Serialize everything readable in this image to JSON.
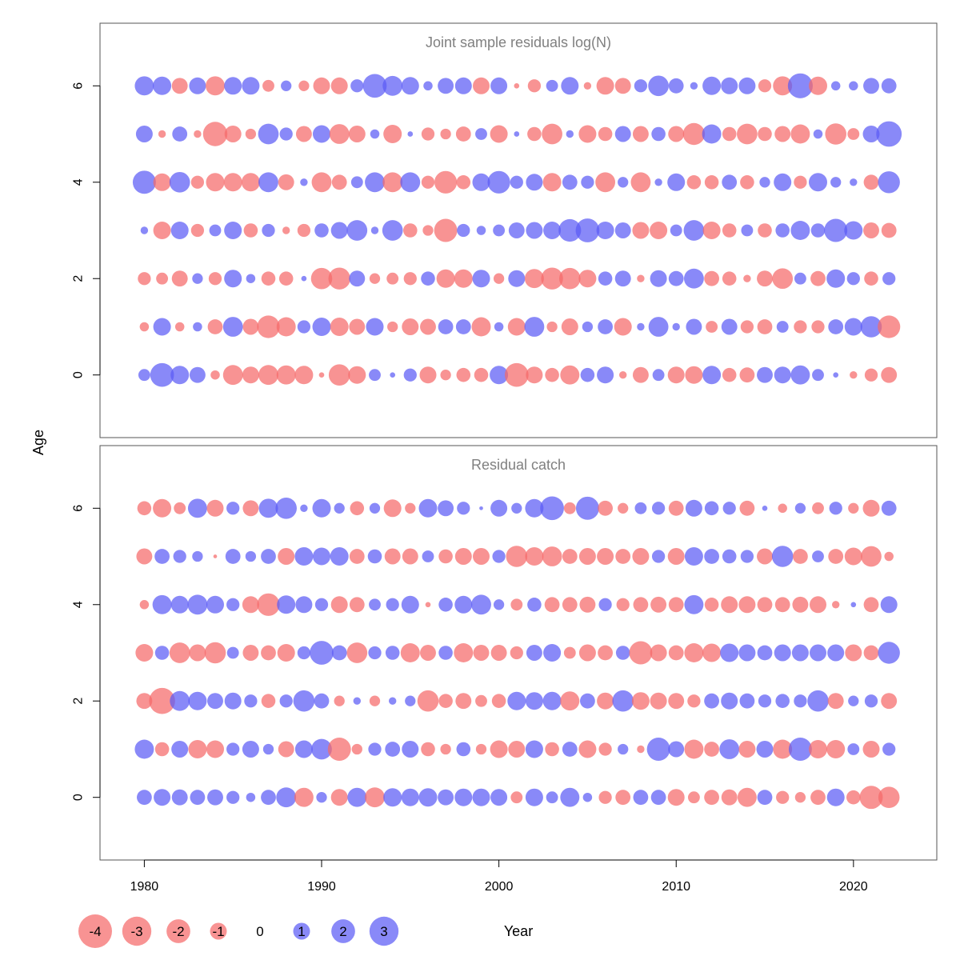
{
  "chart_data": {
    "type": "scatter",
    "subtype": "bubble",
    "xlabel": "Year",
    "ylabel": "Age",
    "xlim": [
      1977.5,
      2024.7
    ],
    "ylim": [
      -1.3,
      7.3
    ],
    "x_ticks": [
      1980,
      1990,
      2000,
      2010,
      2020
    ],
    "y_ticks": [
      0,
      2,
      4,
      6
    ],
    "colors": {
      "positive": "#5b5bf5",
      "negative": "#f56a6a",
      "title": "#808080",
      "frame": "#555555"
    },
    "legend": {
      "values": [
        -4,
        -3,
        -2,
        -1,
        0,
        1,
        2,
        3
      ],
      "labels": [
        "-4",
        "-3",
        "-2",
        "-1",
        "0",
        "1",
        "2",
        "3"
      ],
      "placement": "bottom-left"
    },
    "panels": [
      {
        "title": "Joint sample residuals log(N)",
        "years": [
          1980,
          1981,
          1982,
          1983,
          1984,
          1985,
          1986,
          1987,
          1988,
          1989,
          1990,
          1991,
          1992,
          1993,
          1994,
          1995,
          1996,
          1997,
          1998,
          1999,
          2000,
          2001,
          2002,
          2003,
          2004,
          2005,
          2006,
          2007,
          2008,
          2009,
          2010,
          2011,
          2012,
          2013,
          2014,
          2015,
          2016,
          2017,
          2018,
          2019,
          2020,
          2021,
          2022
        ],
        "rows": {
          "6": [
            1.3,
            1.2,
            -0.9,
            1.0,
            -1.3,
            1.1,
            1.1,
            -0.5,
            0.4,
            -0.4,
            -1.0,
            -1.0,
            0.6,
            2.0,
            1.4,
            1.1,
            0.3,
            0.9,
            1.0,
            -1.0,
            1.0,
            -0.1,
            -0.6,
            0.5,
            1.1,
            -0.2,
            -1.1,
            -0.9,
            0.6,
            1.5,
            0.8,
            0.2,
            1.2,
            1.0,
            1.0,
            -0.6,
            -1.3,
            2.2,
            -1.2,
            0.3,
            0.3,
            0.9,
            0.8
          ],
          "5": [
            1.0,
            -0.2,
            0.8,
            -0.2,
            -2.1,
            -1.0,
            -0.4,
            1.5,
            0.6,
            -0.9,
            1.1,
            -1.4,
            -1.0,
            0.3,
            -1.2,
            0.1,
            -0.6,
            -0.4,
            -0.8,
            0.5,
            -1.1,
            0.1,
            -0.7,
            -1.5,
            0.2,
            -1.1,
            -0.7,
            0.9,
            -0.9,
            0.7,
            -0.9,
            -1.7,
            1.3,
            -0.7,
            -1.5,
            -0.7,
            -0.9,
            -1.3,
            0.3,
            -1.6,
            -0.5,
            1.0,
            2.3
          ],
          "4": [
            1.9,
            -1.1,
            1.5,
            -0.6,
            -1.2,
            -1.2,
            -1.2,
            1.4,
            -0.9,
            0.2,
            -1.4,
            -0.8,
            0.5,
            1.4,
            -1.4,
            1.4,
            -0.6,
            -1.8,
            -0.7,
            1.1,
            1.8,
            0.6,
            1.0,
            -1.2,
            0.8,
            0.6,
            -1.4,
            0.4,
            -1.4,
            0.2,
            1.1,
            -0.7,
            -0.7,
            0.8,
            -0.7,
            0.4,
            1.1,
            -0.6,
            1.2,
            0.4,
            0.2,
            -0.8,
            1.7
          ],
          "3": [
            0.2,
            -1.1,
            1.1,
            -0.6,
            0.5,
            1.1,
            -0.7,
            0.6,
            -0.2,
            -0.6,
            0.7,
            1.0,
            1.5,
            0.2,
            1.5,
            -0.7,
            -0.4,
            -1.9,
            0.6,
            0.3,
            0.5,
            0.9,
            1.0,
            1.1,
            1.8,
            2.0,
            1.1,
            0.9,
            -1.0,
            -1.1,
            0.5,
            1.5,
            -1.1,
            -0.7,
            0.5,
            -0.7,
            0.7,
            1.3,
            0.7,
            1.9,
            1.2,
            -0.9,
            -0.8
          ],
          "2": [
            -0.6,
            -0.5,
            -0.9,
            0.4,
            -0.6,
            1.1,
            0.3,
            -0.7,
            -0.7,
            0.1,
            -1.6,
            -1.7,
            0.9,
            -0.4,
            -0.5,
            -0.6,
            0.7,
            -1.2,
            -1.2,
            1.1,
            -0.4,
            1.0,
            -1.3,
            -1.7,
            -1.6,
            -1.1,
            0.7,
            0.9,
            -0.2,
            1.0,
            0.8,
            1.4,
            -0.8,
            -0.7,
            -0.2,
            -0.9,
            -1.5,
            0.5,
            -0.8,
            1.2,
            0.6,
            -0.7,
            0.6
          ],
          "1": [
            -0.3,
            1.1,
            -0.3,
            0.3,
            -0.8,
            1.4,
            -0.9,
            -1.8,
            -1.3,
            0.6,
            1.2,
            -1.2,
            -0.9,
            1.1,
            -0.4,
            -1.0,
            -0.9,
            0.8,
            0.8,
            -1.3,
            0.3,
            -1.1,
            1.4,
            -0.4,
            -1.0,
            0.4,
            0.8,
            -1.1,
            0.2,
            1.4,
            0.2,
            0.9,
            -0.5,
            0.9,
            -0.6,
            -0.8,
            0.5,
            -0.6,
            -0.6,
            0.8,
            1.1,
            1.6,
            -1.8
          ],
          "0": [
            0.5,
            2.0,
            1.2,
            0.9,
            -0.3,
            -1.4,
            -1.0,
            -1.4,
            -1.3,
            -1.2,
            -0.1,
            -1.6,
            -1.1,
            0.5,
            0.1,
            0.6,
            -1.0,
            -0.4,
            -0.7,
            -0.7,
            1.2,
            -2.0,
            -1.0,
            -0.7,
            -1.3,
            0.7,
            1.0,
            -0.2,
            -0.9,
            0.5,
            -1.0,
            -1.1,
            1.2,
            -0.7,
            -0.8,
            0.9,
            1.0,
            1.3,
            0.5,
            0.1,
            -0.2,
            -0.6,
            -0.9
          ]
        }
      },
      {
        "title": "Residual catch",
        "years": [
          1980,
          1981,
          1982,
          1983,
          1984,
          1985,
          1986,
          1987,
          1988,
          1989,
          1990,
          1991,
          1992,
          1993,
          1994,
          1995,
          1996,
          1997,
          1998,
          1999,
          2000,
          2001,
          2002,
          2003,
          2004,
          2005,
          2006,
          2007,
          2008,
          2009,
          2010,
          2011,
          2012,
          2013,
          2014,
          2015,
          2016,
          2017,
          2018,
          2019,
          2020,
          2021,
          2022
        ],
        "rows": {
          "6": [
            -0.7,
            -1.2,
            -0.5,
            1.3,
            -1.0,
            0.6,
            -0.9,
            1.3,
            1.6,
            0.2,
            1.2,
            0.4,
            -0.7,
            0.4,
            -1.1,
            -0.4,
            1.2,
            0.9,
            0.6,
            0.05,
            1.0,
            0.4,
            1.2,
            2.0,
            -0.5,
            1.9,
            -0.8,
            -0.4,
            0.5,
            0.6,
            -0.8,
            1.0,
            0.7,
            0.6,
            -0.8,
            0.1,
            -0.3,
            0.4,
            -0.5,
            0.6,
            -0.4,
            -1.0,
            0.8
          ],
          "5": [
            -0.9,
            0.8,
            0.6,
            0.4,
            -0.05,
            0.8,
            0.4,
            0.8,
            -1.0,
            1.2,
            1.1,
            1.2,
            -0.8,
            0.7,
            -0.9,
            -0.9,
            0.5,
            -0.7,
            -1.0,
            -1.0,
            0.6,
            -1.6,
            -1.2,
            -1.4,
            -0.8,
            -1.0,
            -1.0,
            -0.8,
            -1.0,
            0.6,
            -1.0,
            1.2,
            0.8,
            0.7,
            0.6,
            -0.9,
            1.6,
            -0.8,
            0.5,
            -0.8,
            -1.1,
            -1.5,
            -0.3
          ],
          "4": [
            -0.3,
            1.3,
            1.1,
            1.4,
            1.1,
            0.6,
            -1.0,
            -1.8,
            1.2,
            1.0,
            0.6,
            -1.0,
            -0.8,
            0.5,
            0.6,
            1.1,
            -0.1,
            0.7,
            1.1,
            1.4,
            0.4,
            -0.5,
            0.7,
            -0.8,
            -0.8,
            -0.9,
            0.6,
            -0.6,
            -0.8,
            -0.9,
            -0.8,
            1.3,
            -0.7,
            -1.0,
            -1.0,
            -0.8,
            -0.8,
            -0.9,
            -1.0,
            -0.2,
            0.1,
            -0.8,
            1.0
          ],
          "3": [
            -1.1,
            0.7,
            -1.5,
            -1.0,
            -1.6,
            0.5,
            -0.9,
            -0.8,
            -1.1,
            0.6,
            2.0,
            0.8,
            -1.5,
            0.6,
            0.7,
            -1.3,
            -0.9,
            0.7,
            -1.3,
            -0.9,
            -0.9,
            -0.6,
            0.9,
            1.1,
            -0.5,
            -1.0,
            -0.8,
            0.7,
            -1.9,
            -1.0,
            -0.8,
            -1.3,
            -1.2,
            1.2,
            1.0,
            0.8,
            1.0,
            1.0,
            1.0,
            1.0,
            -1.0,
            -0.8,
            1.7
          ],
          "2": [
            -0.9,
            -2.4,
            1.4,
            1.2,
            0.9,
            1.0,
            0.6,
            -0.7,
            0.6,
            1.6,
            0.8,
            -0.4,
            0.2,
            -0.4,
            0.2,
            0.4,
            -1.6,
            -0.7,
            -0.9,
            -0.5,
            -0.7,
            1.2,
            1.1,
            1.2,
            -1.3,
            0.8,
            -1.0,
            1.6,
            -1.1,
            -1.0,
            -0.9,
            -0.6,
            0.8,
            1.0,
            0.8,
            0.6,
            0.7,
            0.6,
            1.6,
            -0.9,
            0.4,
            0.6,
            -0.9
          ],
          "1": [
            1.3,
            -0.7,
            1.0,
            -1.2,
            -1.1,
            0.6,
            1.0,
            0.4,
            -0.9,
            1.1,
            1.5,
            -1.9,
            -0.4,
            0.6,
            0.8,
            1.0,
            -0.7,
            -0.4,
            0.7,
            -0.4,
            -1.1,
            -1.0,
            1.1,
            -0.7,
            0.8,
            -1.1,
            -0.6,
            0.4,
            -0.2,
            1.9,
            0.9,
            -1.3,
            -0.8,
            1.4,
            -1.0,
            1.0,
            -1.3,
            1.9,
            -1.2,
            -1.2,
            0.5,
            -1.0,
            0.6
          ],
          "0": [
            0.8,
            1.0,
            0.9,
            0.8,
            0.9,
            0.6,
            0.3,
            0.8,
            1.4,
            -1.3,
            0.4,
            -1.0,
            1.3,
            -1.4,
            1.2,
            1.1,
            1.2,
            0.9,
            1.1,
            1.1,
            1.0,
            -0.5,
            1.1,
            0.5,
            1.3,
            0.3,
            -0.6,
            -0.8,
            0.8,
            0.8,
            -1.0,
            -0.5,
            -0.8,
            -0.9,
            -1.3,
            0.8,
            -0.6,
            -0.4,
            -0.8,
            1.1,
            -0.7,
            -1.9,
            -1.6
          ]
        }
      }
    ]
  }
}
